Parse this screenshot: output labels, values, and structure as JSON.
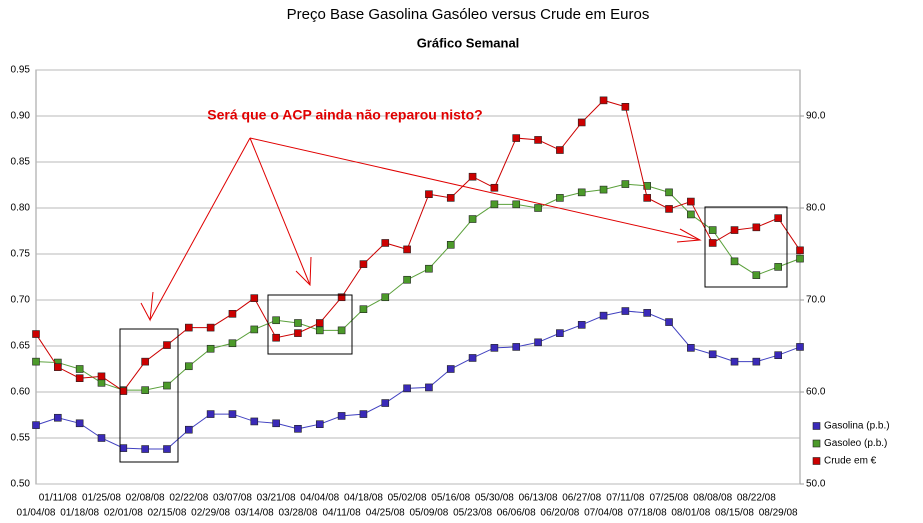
{
  "chart_data": {
    "type": "line",
    "title": "Preço Base Gasolina Gasóleo versus Crude em Euros",
    "subtitle": "Gráfico Semanal",
    "annotation": "Será que o ACP ainda não reparou nisto?",
    "categories": [
      "01/04/08",
      "01/11/08",
      "01/18/08",
      "01/25/08",
      "02/01/08",
      "02/08/08",
      "02/15/08",
      "02/22/08",
      "02/29/08",
      "03/07/08",
      "03/14/08",
      "03/21/08",
      "03/28/08",
      "04/04/08",
      "04/11/08",
      "04/18/08",
      "04/25/08",
      "05/02/08",
      "05/09/08",
      "05/16/08",
      "05/23/08",
      "05/30/08",
      "06/06/08",
      "06/13/08",
      "06/20/08",
      "06/27/08",
      "07/04/08",
      "07/11/08",
      "07/18/08",
      "07/25/08",
      "08/01/08",
      "08/08/08",
      "08/15/08",
      "08/22/08",
      "08/29/08",
      null
    ],
    "series": [
      {
        "name": "Gasolina (p.b.)",
        "color": "#3a2ab8",
        "line": "#4040c0",
        "values": [
          0.564,
          0.572,
          0.566,
          0.55,
          0.539,
          0.538,
          0.538,
          0.559,
          0.576,
          0.576,
          0.568,
          0.566,
          0.56,
          0.565,
          0.574,
          0.576,
          0.588,
          0.604,
          0.605,
          0.625,
          0.637,
          0.648,
          0.649,
          0.654,
          0.664,
          0.673,
          0.683,
          0.688,
          0.686,
          0.676,
          0.648,
          0.641,
          0.633,
          0.633,
          0.64,
          0.649
        ]
      },
      {
        "name": "Gasoleo (p.b.)",
        "color": "#4c9a2a",
        "line": "#5aa03a",
        "values": [
          0.633,
          0.632,
          0.625,
          0.61,
          0.602,
          0.602,
          0.607,
          0.628,
          0.647,
          0.653,
          0.668,
          0.678,
          0.675,
          0.667,
          0.667,
          0.69,
          0.703,
          0.722,
          0.734,
          0.76,
          0.788,
          0.804,
          0.804,
          0.8,
          0.811,
          0.817,
          0.82,
          0.826,
          0.824,
          0.817,
          0.793,
          0.776,
          0.742,
          0.727,
          0.736,
          0.745
        ]
      },
      {
        "name": "Crude em €",
        "color": "#cc0000",
        "line": "#cc0000",
        "axis": "y2",
        "values": [
          66.3,
          62.7,
          61.5,
          61.7,
          60.1,
          63.3,
          65.1,
          67.0,
          67.0,
          68.5,
          70.2,
          65.9,
          66.4,
          67.5,
          70.3,
          73.9,
          76.2,
          75.5,
          81.5,
          81.1,
          83.4,
          82.2,
          87.6,
          87.4,
          86.3,
          89.3,
          91.7,
          91.0,
          81.1,
          79.9,
          80.7,
          76.2,
          77.6,
          77.9,
          78.9,
          75.4
        ]
      }
    ],
    "ylim": [
      0.5,
      0.95
    ],
    "yticks": [
      {
        "value": 0.5,
        "label": "0.50"
      },
      0.55,
      {
        "value": 0.6,
        "label": "0.60"
      },
      0.65,
      {
        "value": 0.7,
        "label": "0.70"
      },
      0.75,
      {
        "value": 0.8,
        "label": "0.80"
      },
      0.85,
      {
        "value": 0.9,
        "label": "0.90"
      },
      0.95
    ],
    "y2lim": [
      50,
      95
    ],
    "y2ticks": [
      {
        "value": 50,
        "label": "50.0"
      },
      {
        "value": 60,
        "label": "60.0"
      },
      {
        "value": 70,
        "label": "70.0"
      },
      {
        "value": 80,
        "label": "80.0"
      },
      {
        "value": 90,
        "label": "90.0"
      }
    ],
    "grid": true
  }
}
